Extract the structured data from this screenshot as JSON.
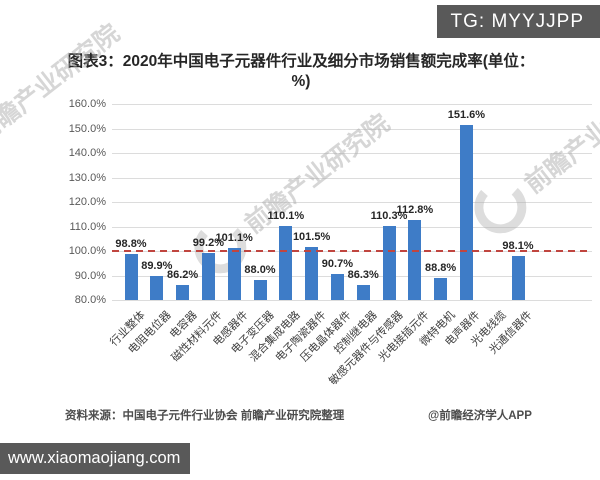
{
  "badge": {
    "text": "TG: MYYJJPP"
  },
  "watermark": {
    "text": "前瞻产业研究院"
  },
  "chart_data": {
    "type": "bar",
    "title": "图表3：2020年中国电子元器件行业及细分市场销售额完成率(单位：%)",
    "unit": "%",
    "categories": [
      "行业整体",
      "电阻电位器",
      "电容器",
      "磁性材料元件",
      "电感器件",
      "电子变压器",
      "混合集成电路",
      "电子陶瓷器件",
      "压电晶体器件",
      "控制继电器",
      "敏感元器件与传感器",
      "光电接插元件",
      "微特电机",
      "电声器件",
      "光电线缆",
      "光通信器件"
    ],
    "values": [
      98.8,
      89.9,
      86.2,
      99.2,
      101.1,
      88.0,
      110.1,
      101.5,
      90.7,
      86.3,
      110.3,
      112.8,
      88.8,
      151.6,
      null,
      98.1
    ],
    "value_labels": [
      "98.8%",
      "89.9%",
      "86.2%",
      "99.2%",
      "101.1%",
      "88.0%",
      "110.1%",
      "101.5%",
      "90.7%",
      "86.3%",
      "110.3%",
      "112.8%",
      "88.8%",
      "151.6%",
      null,
      "98.1%"
    ],
    "ylim": [
      80,
      160
    ],
    "ytick_step": 10,
    "yticks": [
      "160.0%",
      "150.0%",
      "140.0%",
      "130.0%",
      "120.0%",
      "110.0%",
      "100.0%",
      "90.0%",
      "80.0%"
    ],
    "grid": true,
    "legend_position": "none",
    "reference_line": {
      "value": 100,
      "style": "dashed",
      "color": "#c0453f"
    },
    "bar_color": "#3e7cc7"
  },
  "source": {
    "text": "资料来源：中国电子元件行业协会 前瞻产业研究院整理"
  },
  "credit": {
    "text": "@前瞻经济学人APP"
  },
  "site_bar": {
    "text": "www.xiaomaojiang.com"
  }
}
